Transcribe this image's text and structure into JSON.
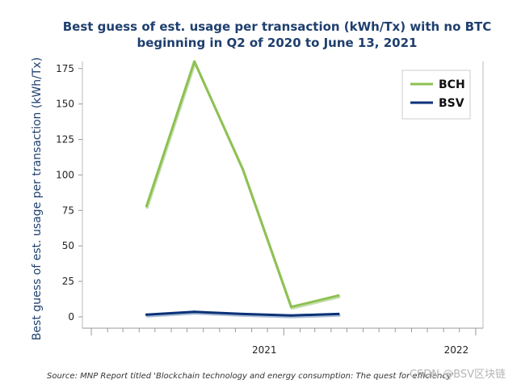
{
  "chart_data": {
    "type": "line",
    "title_line1": "Best guess of est. usage per transaction (kWh/Tx) with no BTC",
    "title_line2": "beginning in Q2 of 2020 to June 13, 2021",
    "ylabel": "Best guess of est. usage per transaction (kWh/Tx)",
    "xlabel": "",
    "ylim": [
      -8,
      180
    ],
    "y_ticks": [
      0,
      25,
      50,
      75,
      100,
      125,
      150,
      175
    ],
    "x_ticks": [
      {
        "label": "2021",
        "x": "2021-01-01"
      },
      {
        "label": "2022",
        "x": "2022-01-01"
      }
    ],
    "xlim": [
      "2019-12-15",
      "2022-01-15"
    ],
    "series": [
      {
        "name": "BCH",
        "color": "#8dc152",
        "x": [
          "2020-04-15",
          "2020-07-15",
          "2020-10-15",
          "2021-01-15",
          "2021-04-15"
        ],
        "values": [
          78,
          180,
          104,
          7,
          15
        ]
      },
      {
        "name": "BSV",
        "color": "#0b3278",
        "x": [
          "2020-04-15",
          "2020-07-15",
          "2020-10-15",
          "2021-01-15",
          "2021-04-15"
        ],
        "values": [
          1.5,
          3.5,
          2,
          1,
          2
        ]
      }
    ],
    "legend_position": "top-right",
    "grid": false,
    "source": "Source: MNP Report titled 'Blockchain technology and energy consumption: The quest for efficiency'",
    "watermark": "CSDN @BSV区块链"
  }
}
